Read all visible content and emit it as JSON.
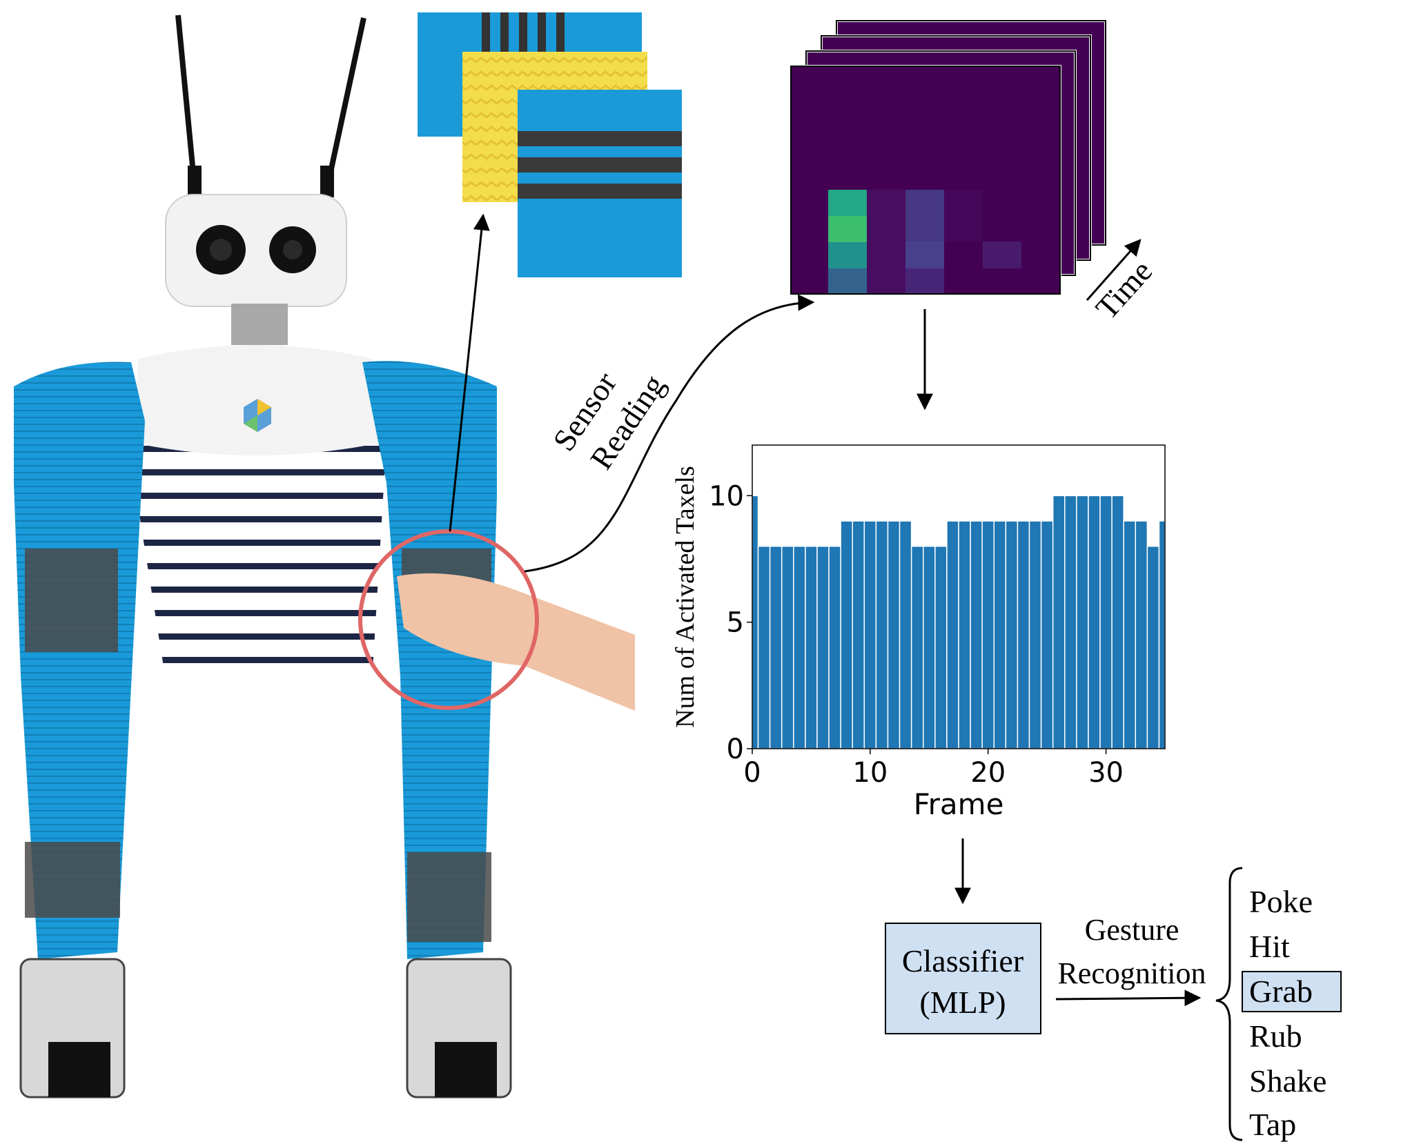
{
  "labels": {
    "sensor_line1": "Sensor",
    "sensor_line2": "Reading",
    "time": "Time",
    "classifier_line1": "Classifier",
    "classifier_line2": "(MLP)",
    "gesture_line1": "Gesture",
    "gesture_line2": "Recognition"
  },
  "gestures": {
    "items": [
      "Poke",
      "Hit",
      "Grab",
      "Rub",
      "Shake",
      "Tap"
    ],
    "selected": "Grab"
  },
  "colors": {
    "bar": "#1f77b4",
    "classifier_box": "#cfe0f3",
    "highlight_box": "#cfe0f3",
    "sleeve_blue": "#1a9ad8",
    "sleeve_dark": "#4a4a4a",
    "circle": "#e06666",
    "heatmap_bg": "#440154"
  },
  "chart_data": {
    "type": "bar",
    "xlabel": "Frame",
    "ylabel": "Num of Activated Taxels",
    "xlim": [
      0,
      35
    ],
    "ylim": [
      0,
      12
    ],
    "xticks": [
      "0",
      "10",
      "20",
      "30"
    ],
    "yticks": [
      "0",
      "5",
      "10"
    ],
    "x": [
      0,
      1,
      2,
      3,
      4,
      5,
      6,
      7,
      8,
      9,
      10,
      11,
      12,
      13,
      14,
      15,
      16,
      17,
      18,
      19,
      20,
      21,
      22,
      23,
      24,
      25,
      26,
      27,
      28,
      29,
      30,
      31,
      32,
      33,
      34,
      35
    ],
    "values": [
      10,
      8,
      8,
      8,
      8,
      8,
      8,
      8,
      9,
      9,
      9,
      9,
      9,
      9,
      8,
      8,
      8,
      9,
      9,
      9,
      9,
      9,
      9,
      9,
      9,
      9,
      10,
      10,
      10,
      10,
      10,
      10,
      9,
      9,
      8,
      9
    ]
  }
}
